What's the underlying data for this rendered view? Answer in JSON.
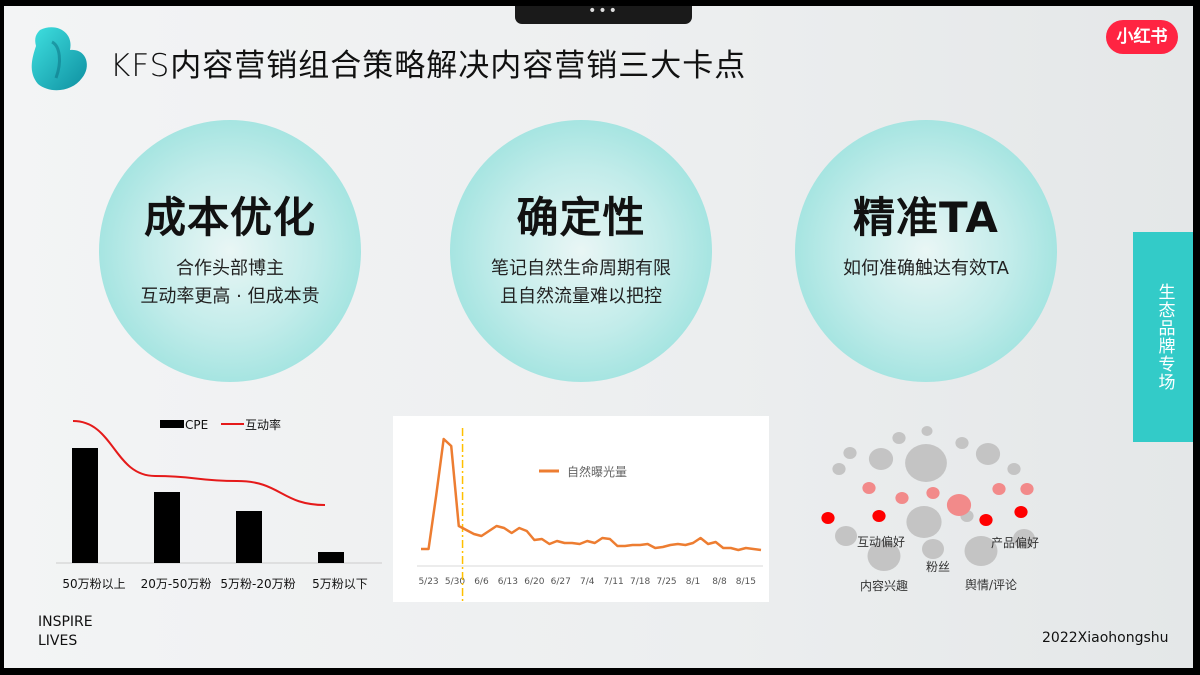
{
  "title": "KFS内容营销组合策略解决内容营销三大卡点",
  "brand_badge": "小红书",
  "side_tab": "生态品牌专场",
  "window_handle": "•••",
  "pillars": [
    {
      "heading": "成本优化",
      "lines": [
        "合作头部博主",
        "互动率更高 · 但成本贵"
      ]
    },
    {
      "heading": "确定性",
      "lines": [
        "笔记自然生命周期有限",
        "且自然流量难以把控"
      ]
    },
    {
      "heading": "精准TA",
      "lines": [
        "如何准确触达有效TA"
      ]
    }
  ],
  "footer_left": [
    "INSPIRE",
    "LIVES"
  ],
  "footer_right": "2022Xiaohongshu",
  "colors": {
    "accent": "#33cbc8",
    "brand": "#ff2442",
    "bar": "#000000",
    "rate_line": "#e51a1a",
    "exposure_line": "#ed7d31",
    "marker": "#ffc000"
  },
  "chart_data": [
    {
      "type": "bar",
      "categories": [
        "50万粉以上",
        "20万-50万粉",
        "5万粉-20万粉",
        "5万粉以下"
      ],
      "series": [
        {
          "name": "CPE",
          "type": "bar",
          "values": [
            115,
            71,
            52,
            11
          ]
        },
        {
          "name": "互动率",
          "type": "line",
          "values": [
            142,
            87,
            82,
            58
          ]
        }
      ],
      "legend": "top",
      "grid": false
    },
    {
      "type": "line",
      "series": [
        {
          "name": "自然曝光量",
          "x": [
            "5/21",
            "5/23",
            "5/25",
            "5/27",
            "5/29",
            "5/31",
            "6/2",
            "6/4",
            "6/6",
            "6/8",
            "6/10",
            "6/12",
            "6/14",
            "6/16",
            "6/18",
            "6/20",
            "6/22",
            "6/24",
            "6/26",
            "6/28",
            "6/30",
            "7/2",
            "7/4",
            "7/6",
            "7/8",
            "7/10",
            "7/12",
            "7/14",
            "7/16",
            "7/18",
            "7/20",
            "7/22",
            "7/24",
            "7/26",
            "7/28",
            "7/30",
            "8/1",
            "8/3",
            "8/5",
            "8/7",
            "8/9",
            "8/11",
            "8/13",
            "8/15",
            "8/17",
            "8/19"
          ],
          "values": [
            17,
            17,
            70,
            127,
            120,
            40,
            36,
            32,
            30,
            35,
            40,
            38,
            33,
            38,
            35,
            26,
            27,
            22,
            25,
            23,
            23,
            22,
            25,
            23,
            28,
            27,
            20,
            20,
            21,
            21,
            22,
            18,
            19,
            21,
            22,
            21,
            23,
            28,
            22,
            24,
            18,
            18,
            16,
            18,
            17,
            16
          ]
        }
      ],
      "x_ticks": [
        "5/23",
        "5/30",
        "6/6",
        "6/13",
        "6/20",
        "6/27",
        "7/4",
        "7/11",
        "7/18",
        "7/25",
        "8/1",
        "8/8",
        "8/15"
      ],
      "marker_date": "6/1",
      "legend": "top-center",
      "grid": false
    },
    {
      "type": "scatter",
      "labels": [
        "互动偏好",
        "产品偏好",
        "粉丝",
        "内容兴趣",
        "舆情/评论"
      ],
      "colors": {
        "neutral": "#c4c4c4",
        "light": "#f28a8a",
        "strong": "#ff0000"
      }
    }
  ]
}
